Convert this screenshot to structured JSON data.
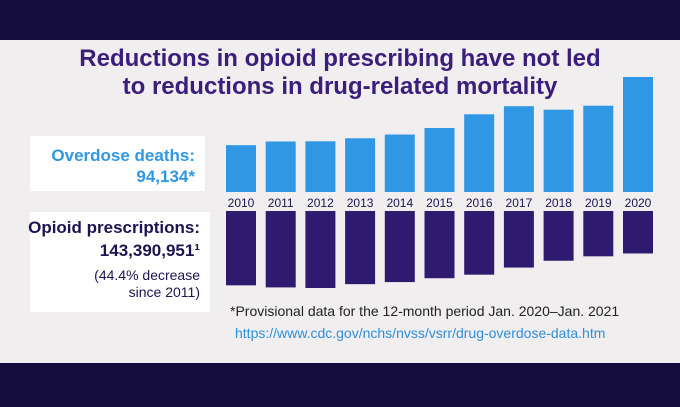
{
  "title": {
    "line1": "Reductions in opioid prescribing have not led",
    "line2": "to reductions in drug-related mortality"
  },
  "deaths_box": {
    "label": "Overdose deaths:",
    "value": "94,134*"
  },
  "rx_box": {
    "label": "Opioid prescriptions:",
    "value": "143,390,951¹",
    "note_line1": "(44.4% decrease",
    "note_line2": "since 2011)"
  },
  "footnote": "*Provisional data for the 12-month period Jan. 2020–Jan. 2021",
  "url": "https://www.cdc.gov/nchs/nvss/vsrr/drug-overdose-data.htm",
  "colors": {
    "deaths": "#2f97e4",
    "prescriptions": "#2e1a6e",
    "title": "#3b1d7a"
  },
  "chart_data": {
    "type": "bar",
    "categories": [
      "2010",
      "2011",
      "2012",
      "2013",
      "2014",
      "2015",
      "2016",
      "2017",
      "2018",
      "2019",
      "2020"
    ],
    "series": [
      {
        "name": "Overdose deaths",
        "values": [
          38329,
          41340,
          41502,
          43982,
          47055,
          52404,
          63632,
          70237,
          67367,
          70630,
          94134
        ]
      },
      {
        "name": "Opioid prescriptions",
        "values": [
          251000000,
          258000000,
          260000000,
          247000000,
          240000000,
          227000000,
          215000000,
          191000000,
          168000000,
          153000000,
          143390951
        ]
      }
    ]
  }
}
